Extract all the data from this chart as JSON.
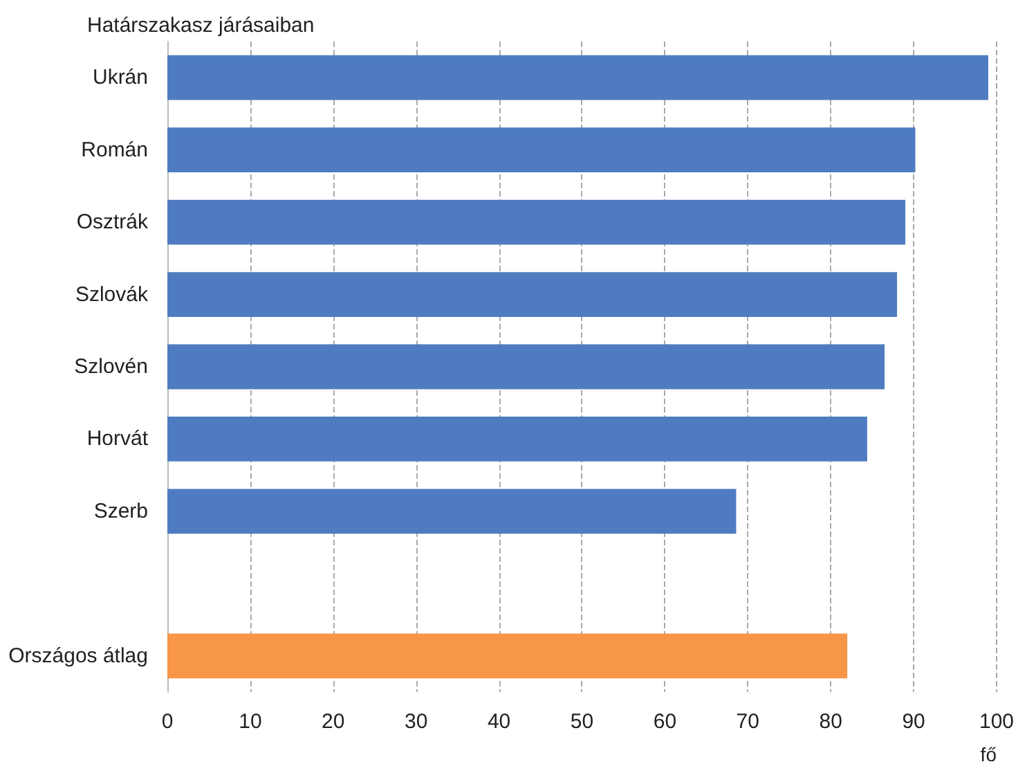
{
  "chart_data": {
    "type": "bar",
    "orientation": "horizontal",
    "title": "Határszakasz járásaiban",
    "xlabel": "fő",
    "categories": [
      "Ukrán",
      "Román",
      "Osztrák",
      "Szlovák",
      "Szlovén",
      "Horvát",
      "Szerb",
      null,
      "Országos átlag"
    ],
    "values": [
      99.0,
      90.2,
      89.0,
      88.0,
      86.5,
      84.4,
      68.6,
      null,
      82.0
    ],
    "colors": [
      "#4f7cc1",
      "#4f7cc1",
      "#4f7cc1",
      "#4f7cc1",
      "#4f7cc1",
      "#4f7cc1",
      "#4f7cc1",
      "#4f7cc1",
      "#f79646"
    ],
    "xlim": [
      0,
      100
    ],
    "xticks": [
      0,
      10,
      20,
      30,
      40,
      50,
      60,
      70,
      80,
      90,
      100
    ],
    "grid": "x"
  }
}
